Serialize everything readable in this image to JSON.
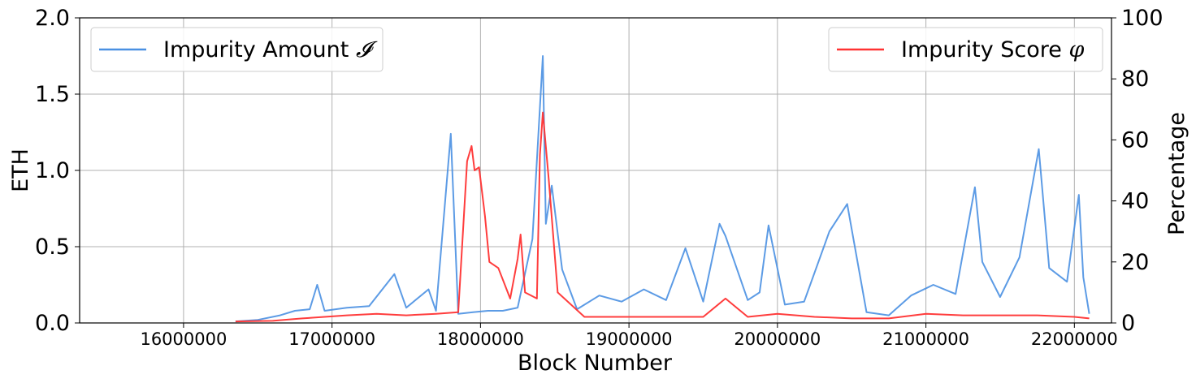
{
  "chart_data": {
    "type": "line",
    "xlabel": "Block Number",
    "ylabel_left": "ETH",
    "ylabel_right": "Percentage",
    "xlim": [
      15300000,
      22250000
    ],
    "ylim_left": [
      0,
      2.0
    ],
    "ylim_right": [
      0,
      100
    ],
    "x_ticks": [
      16000000,
      17000000,
      18000000,
      19000000,
      20000000,
      21000000,
      22000000
    ],
    "x_tick_labels": [
      "16000000",
      "17000000",
      "18000000",
      "19000000",
      "20000000",
      "21000000",
      "22000000"
    ],
    "y_left_ticks": [
      0,
      0.5,
      1.0,
      1.5,
      2.0
    ],
    "y_left_tick_labels": [
      "0.0",
      "0.5",
      "1.0",
      "1.5",
      "2.0"
    ],
    "y_right_ticks": [
      0,
      20,
      40,
      60,
      80,
      100
    ],
    "y_right_tick_labels": [
      "0",
      "20",
      "40",
      "60",
      "80",
      "100"
    ],
    "grid": true,
    "legend_left": {
      "placement": "top-left",
      "label": "Impurity Amount ",
      "symbol": "𝓘"
    },
    "legend_right": {
      "placement": "top-right",
      "label": "Impurity Score ",
      "symbol": "φ"
    },
    "series": [
      {
        "name": "Impurity Amount 𝓘",
        "axis": "left",
        "color": "#4a90e2",
        "x": [
          16350000,
          16500000,
          16650000,
          16750000,
          16850000,
          16900000,
          16950000,
          17100000,
          17250000,
          17420000,
          17500000,
          17650000,
          17700000,
          17800000,
          17850000,
          17950000,
          18050000,
          18150000,
          18250000,
          18350000,
          18420000,
          18440000,
          18480000,
          18550000,
          18650000,
          18800000,
          18950000,
          19100000,
          19250000,
          19380000,
          19500000,
          19610000,
          19650000,
          19800000,
          19880000,
          19940000,
          20050000,
          20180000,
          20350000,
          20470000,
          20600000,
          20750000,
          20900000,
          21050000,
          21200000,
          21330000,
          21380000,
          21500000,
          21630000,
          21760000,
          21830000,
          21950000,
          22030000,
          22060000,
          22100000
        ],
        "values": [
          0.01,
          0.02,
          0.05,
          0.08,
          0.09,
          0.25,
          0.08,
          0.1,
          0.11,
          0.32,
          0.1,
          0.22,
          0.08,
          1.24,
          0.06,
          0.07,
          0.08,
          0.08,
          0.1,
          0.55,
          1.75,
          0.65,
          0.9,
          0.35,
          0.09,
          0.18,
          0.14,
          0.22,
          0.15,
          0.49,
          0.14,
          0.65,
          0.57,
          0.15,
          0.2,
          0.64,
          0.12,
          0.14,
          0.6,
          0.78,
          0.07,
          0.05,
          0.18,
          0.25,
          0.19,
          0.89,
          0.4,
          0.17,
          0.43,
          1.14,
          0.36,
          0.27,
          0.84,
          0.3,
          0.06
        ]
      },
      {
        "name": "Impurity Score φ",
        "axis": "right",
        "color": "#ff3333",
        "x": [
          16350000,
          16600000,
          16800000,
          16950000,
          17100000,
          17300000,
          17500000,
          17700000,
          17850000,
          17910000,
          17940000,
          17960000,
          17990000,
          18030000,
          18060000,
          18120000,
          18200000,
          18250000,
          18270000,
          18300000,
          18380000,
          18400000,
          18420000,
          18460000,
          18520000,
          18700000,
          18900000,
          19100000,
          19300000,
          19500000,
          19650000,
          19800000,
          20000000,
          20250000,
          20500000,
          20750000,
          21000000,
          21250000,
          21500000,
          21750000,
          22000000,
          22100000
        ],
        "values": [
          0.5,
          0.7,
          1.5,
          2.0,
          2.5,
          3.0,
          2.5,
          3.0,
          3.5,
          53,
          58,
          50,
          51,
          35,
          20,
          18,
          8,
          21,
          29,
          10,
          8,
          55,
          69,
          47,
          10,
          2,
          2,
          2,
          2,
          2,
          8,
          2,
          3,
          2,
          1.5,
          1.5,
          3,
          2.5,
          2.5,
          2.5,
          2,
          1.5
        ]
      }
    ]
  }
}
